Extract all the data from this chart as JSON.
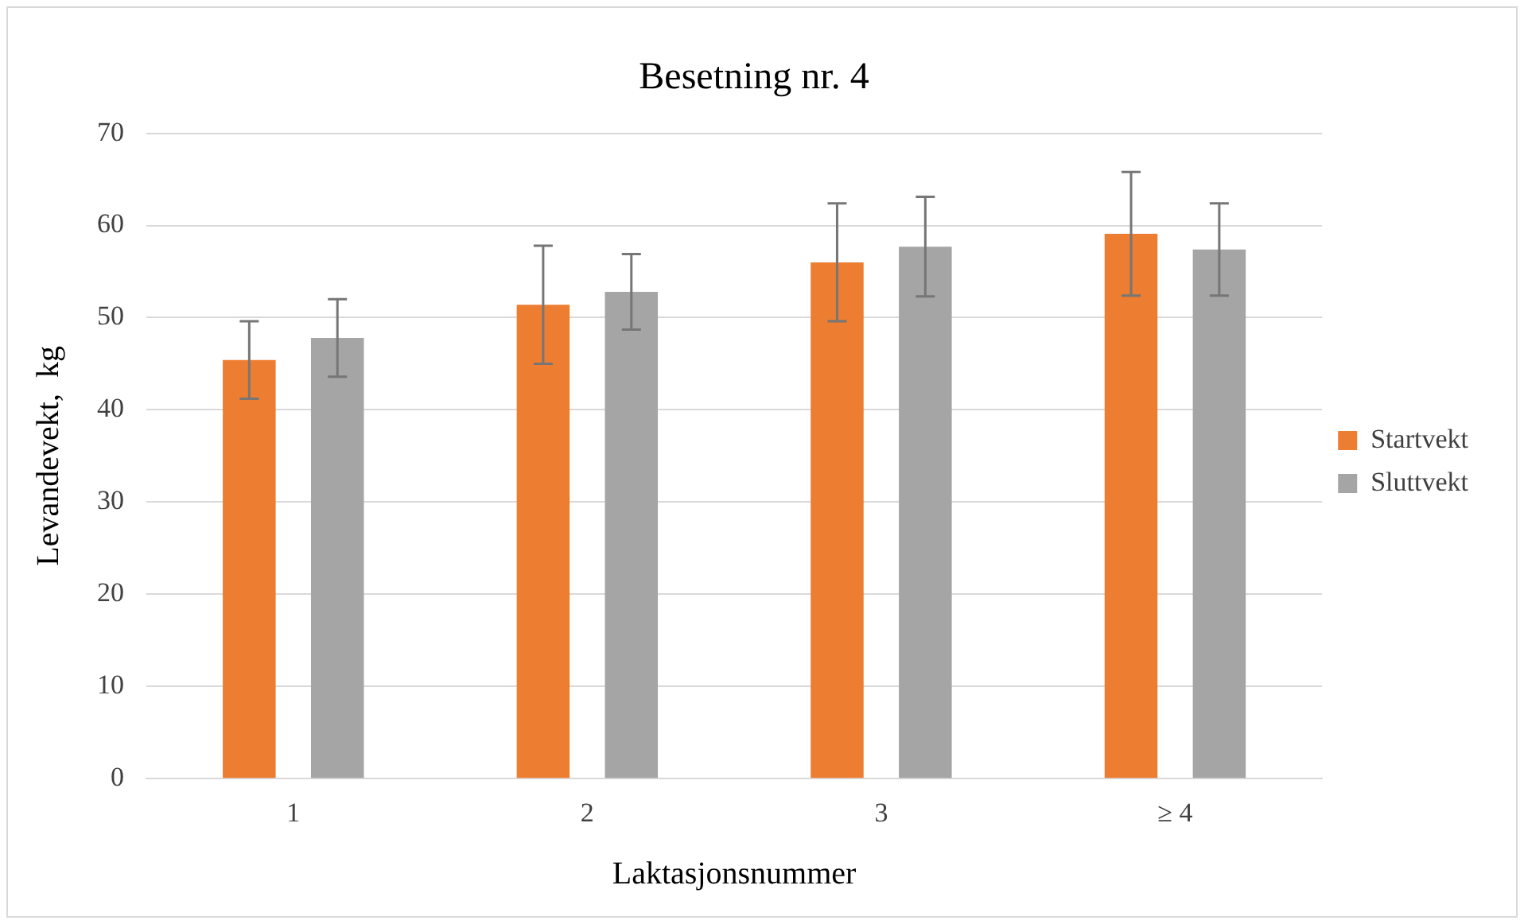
{
  "chart_data": {
    "type": "bar",
    "title": "Besetning nr. 4",
    "xlabel": "Laktasjonsnummer",
    "ylabel": "Levandevekt,  kg",
    "categories": [
      "1",
      "2",
      "3",
      "≥ 4"
    ],
    "series": [
      {
        "name": "Startvekt",
        "color": "#ed7d31",
        "values": [
          45.4,
          51.4,
          56.0,
          59.1
        ],
        "errors": [
          4.2,
          6.4,
          6.4,
          6.7
        ]
      },
      {
        "name": "Sluttvekt",
        "color": "#a5a5a5",
        "values": [
          47.8,
          52.8,
          57.7,
          57.4
        ],
        "errors": [
          4.2,
          4.1,
          5.4,
          5.0
        ]
      }
    ],
    "ylim": [
      0,
      70
    ],
    "yticks": [
      0,
      10,
      20,
      30,
      40,
      50,
      60,
      70
    ],
    "grid": "y",
    "legend": "right"
  }
}
